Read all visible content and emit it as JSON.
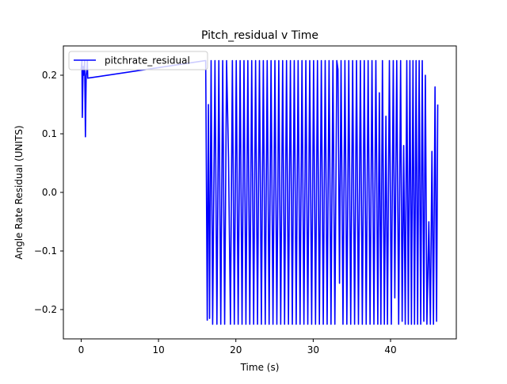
{
  "chart_data": {
    "type": "line",
    "title": "Pitch_residual v Time",
    "xlabel": "Time (s)",
    "ylabel": "Angle Rate Residual (UNITS)",
    "xlim": [
      -2.3,
      48.5
    ],
    "ylim": [
      -0.25,
      0.25
    ],
    "x_ticks": [
      0,
      10,
      20,
      30,
      40
    ],
    "y_ticks": [
      -0.2,
      -0.1,
      0.0,
      0.1,
      0.2
    ],
    "y_tick_labels": [
      "−0.2",
      "−0.1",
      "0.0",
      "0.1",
      "0.2"
    ],
    "grid": false,
    "legend_position": "top-left",
    "series": [
      {
        "name": "pitchrate_residual",
        "color": "#0000ff",
        "points": [
          [
            0.0,
            0.21
          ],
          [
            0.1,
            0.225
          ],
          [
            0.15,
            0.128
          ],
          [
            0.25,
            0.215
          ],
          [
            0.35,
            0.2
          ],
          [
            0.45,
            0.225
          ],
          [
            0.55,
            0.095
          ],
          [
            0.65,
            0.2
          ],
          [
            0.75,
            0.21
          ],
          [
            0.8,
            0.225
          ],
          [
            0.85,
            0.195
          ],
          [
            16.1,
            0.225
          ],
          [
            16.3,
            -0.218
          ],
          [
            16.45,
            0.15
          ],
          [
            16.6,
            -0.215
          ],
          [
            16.8,
            0.225
          ],
          [
            17.0,
            -0.225
          ],
          [
            17.3,
            0.225
          ],
          [
            17.55,
            -0.225
          ],
          [
            17.8,
            0.225
          ],
          [
            18.05,
            -0.225
          ],
          [
            18.3,
            0.225
          ],
          [
            18.55,
            -0.225
          ],
          [
            18.8,
            0.225
          ],
          [
            19.05,
            0.06
          ],
          [
            19.3,
            -0.225
          ],
          [
            19.55,
            0.225
          ],
          [
            19.8,
            -0.225
          ],
          [
            20.05,
            0.225
          ],
          [
            20.3,
            -0.225
          ],
          [
            20.55,
            0.225
          ],
          [
            20.8,
            -0.225
          ],
          [
            21.05,
            0.225
          ],
          [
            21.3,
            -0.225
          ],
          [
            21.55,
            0.225
          ],
          [
            21.8,
            -0.225
          ],
          [
            22.05,
            0.225
          ],
          [
            22.3,
            -0.225
          ],
          [
            22.55,
            0.225
          ],
          [
            22.8,
            -0.225
          ],
          [
            23.05,
            0.225
          ],
          [
            23.3,
            -0.225
          ],
          [
            23.55,
            0.225
          ],
          [
            23.8,
            -0.225
          ],
          [
            24.05,
            0.225
          ],
          [
            24.3,
            -0.225
          ],
          [
            24.55,
            0.225
          ],
          [
            24.8,
            -0.225
          ],
          [
            25.05,
            0.225
          ],
          [
            25.3,
            -0.225
          ],
          [
            25.55,
            0.225
          ],
          [
            25.8,
            -0.225
          ],
          [
            26.05,
            0.225
          ],
          [
            26.3,
            -0.225
          ],
          [
            26.55,
            0.225
          ],
          [
            26.8,
            -0.225
          ],
          [
            27.05,
            0.225
          ],
          [
            27.3,
            -0.225
          ],
          [
            27.55,
            0.225
          ],
          [
            27.8,
            -0.225
          ],
          [
            28.05,
            0.225
          ],
          [
            28.3,
            -0.225
          ],
          [
            28.55,
            0.225
          ],
          [
            28.8,
            -0.225
          ],
          [
            29.05,
            0.225
          ],
          [
            29.3,
            -0.225
          ],
          [
            29.55,
            0.225
          ],
          [
            29.8,
            -0.225
          ],
          [
            30.05,
            0.225
          ],
          [
            30.3,
            -0.225
          ],
          [
            30.55,
            0.225
          ],
          [
            30.8,
            -0.225
          ],
          [
            31.05,
            0.225
          ],
          [
            31.3,
            -0.225
          ],
          [
            31.55,
            0.225
          ],
          [
            31.8,
            -0.225
          ],
          [
            32.05,
            0.225
          ],
          [
            32.3,
            -0.225
          ],
          [
            32.55,
            0.225
          ],
          [
            32.8,
            -0.225
          ],
          [
            33.05,
            0.225
          ],
          [
            33.2,
            0.21
          ],
          [
            33.4,
            -0.155
          ],
          [
            33.6,
            0.225
          ],
          [
            33.85,
            -0.225
          ],
          [
            34.1,
            0.225
          ],
          [
            34.35,
            -0.225
          ],
          [
            34.6,
            0.225
          ],
          [
            34.85,
            -0.225
          ],
          [
            35.1,
            0.225
          ],
          [
            35.35,
            -0.225
          ],
          [
            35.6,
            0.225
          ],
          [
            35.85,
            -0.225
          ],
          [
            36.1,
            0.225
          ],
          [
            36.35,
            -0.225
          ],
          [
            36.6,
            0.225
          ],
          [
            36.85,
            -0.225
          ],
          [
            37.1,
            0.225
          ],
          [
            37.35,
            -0.225
          ],
          [
            37.6,
            0.225
          ],
          [
            37.85,
            -0.225
          ],
          [
            38.1,
            0.225
          ],
          [
            38.35,
            -0.225
          ],
          [
            38.55,
            0.17
          ],
          [
            38.75,
            -0.225
          ],
          [
            38.95,
            0.225
          ],
          [
            39.2,
            -0.225
          ],
          [
            39.4,
            0.13
          ],
          [
            39.6,
            -0.225
          ],
          [
            39.85,
            0.225
          ],
          [
            40.1,
            -0.225
          ],
          [
            40.35,
            0.225
          ],
          [
            40.55,
            -0.18
          ],
          [
            40.8,
            0.225
          ],
          [
            41.05,
            -0.225
          ],
          [
            41.3,
            0.225
          ],
          [
            41.5,
            -0.22
          ],
          [
            41.7,
            0.08
          ],
          [
            41.9,
            -0.225
          ],
          [
            42.1,
            0.225
          ],
          [
            42.3,
            -0.225
          ],
          [
            42.5,
            0.225
          ],
          [
            42.7,
            -0.225
          ],
          [
            42.9,
            0.225
          ],
          [
            43.1,
            -0.225
          ],
          [
            43.3,
            0.225
          ],
          [
            43.5,
            -0.225
          ],
          [
            43.7,
            0.225
          ],
          [
            43.9,
            -0.225
          ],
          [
            44.1,
            0.225
          ],
          [
            44.3,
            -0.22
          ],
          [
            44.5,
            0.2
          ],
          [
            44.7,
            -0.225
          ],
          [
            44.95,
            -0.05
          ],
          [
            45.15,
            -0.225
          ],
          [
            45.35,
            0.07
          ],
          [
            45.55,
            -0.225
          ],
          [
            45.75,
            0.18
          ],
          [
            45.95,
            -0.22
          ],
          [
            46.1,
            0.15
          ]
        ]
      }
    ]
  }
}
